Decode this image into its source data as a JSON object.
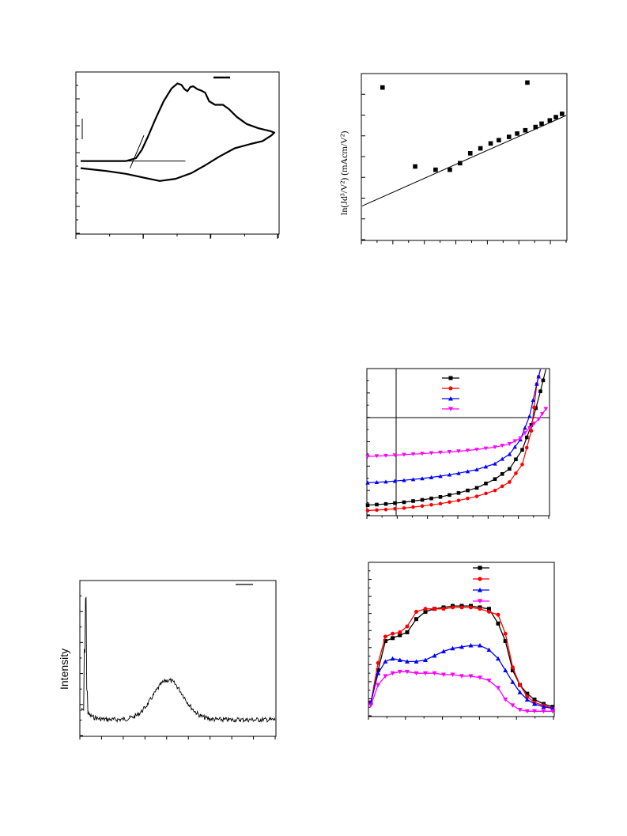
{
  "chart_data": [
    {
      "id": "cv",
      "type": "line",
      "title": "",
      "xlabel": "",
      "ylabel": "",
      "legend": {
        "placement": "top-right",
        "entries": [
          ""
        ]
      },
      "series": [
        {
          "name": "",
          "points": [
            [
              0.02,
              0.38
            ],
            [
              0.15,
              0.38
            ],
            [
              0.25,
              0.38
            ],
            [
              0.3,
              0.4
            ],
            [
              0.33,
              0.46
            ],
            [
              0.36,
              0.55
            ],
            [
              0.4,
              0.68
            ],
            [
              0.44,
              0.8
            ],
            [
              0.48,
              0.89
            ],
            [
              0.51,
              0.925
            ],
            [
              0.53,
              0.915
            ],
            [
              0.545,
              0.885
            ],
            [
              0.56,
              0.87
            ],
            [
              0.575,
              0.9
            ],
            [
              0.59,
              0.905
            ],
            [
              0.61,
              0.885
            ],
            [
              0.63,
              0.875
            ],
            [
              0.65,
              0.86
            ],
            [
              0.67,
              0.8
            ],
            [
              0.7,
              0.775
            ],
            [
              0.74,
              0.775
            ],
            [
              0.77,
              0.745
            ],
            [
              0.81,
              0.69
            ],
            [
              0.86,
              0.64
            ],
            [
              0.92,
              0.61
            ],
            [
              0.98,
              0.59
            ],
            [
              1.0,
              0.58
            ],
            [
              0.985,
              0.56
            ],
            [
              0.94,
              0.52
            ],
            [
              0.88,
              0.5
            ],
            [
              0.8,
              0.47
            ],
            [
              0.72,
              0.41
            ],
            [
              0.65,
              0.35
            ],
            [
              0.58,
              0.295
            ],
            [
              0.5,
              0.255
            ],
            [
              0.42,
              0.24
            ],
            [
              0.35,
              0.26
            ],
            [
              0.25,
              0.29
            ],
            [
              0.15,
              0.31
            ],
            [
              0.02,
              0.33
            ]
          ]
        },
        {
          "name": "",
          "points": [
            [
              0.27,
              0.33
            ],
            [
              0.34,
              0.56
            ]
          ]
        },
        {
          "name": "",
          "points": [
            [
              0.02,
              0.38
            ],
            [
              0.55,
              0.38
            ]
          ]
        }
      ]
    },
    {
      "id": "fn",
      "type": "scatter",
      "title": "",
      "xlabel": "",
      "ylabel": "ln(Jd³/V²) (mAcm/V²)",
      "series": [
        {
          "name": "",
          "points": [
            [
              0.1,
              0.92
            ],
            [
              0.26,
              0.44
            ],
            [
              0.36,
              0.42
            ],
            [
              0.43,
              0.42
            ],
            [
              0.48,
              0.46
            ],
            [
              0.53,
              0.52
            ],
            [
              0.58,
              0.55
            ],
            [
              0.63,
              0.58
            ],
            [
              0.67,
              0.6
            ],
            [
              0.72,
              0.62
            ],
            [
              0.76,
              0.64
            ],
            [
              0.8,
              0.66
            ],
            [
              0.85,
              0.68
            ],
            [
              0.88,
              0.7
            ],
            [
              0.92,
              0.72
            ],
            [
              0.95,
              0.74
            ],
            [
              0.98,
              0.76
            ],
            [
              0.81,
              0.95
            ]
          ]
        },
        {
          "name": "",
          "points": [
            [
              0.0,
              0.2
            ],
            [
              1.0,
              0.75
            ]
          ]
        }
      ]
    },
    {
      "id": "jv",
      "type": "line",
      "title": "",
      "xlabel": "",
      "ylabel": "",
      "legend": {
        "placement": "top-center",
        "entries": [
          "",
          "",
          "",
          ""
        ]
      },
      "series": [
        {
          "name": "",
          "color": "#000000",
          "marker": "square",
          "points": [
            [
              0.0,
              0.072
            ],
            [
              0.1,
              0.08
            ],
            [
              0.2,
              0.092
            ],
            [
              0.3,
              0.108
            ],
            [
              0.4,
              0.128
            ],
            [
              0.5,
              0.155
            ],
            [
              0.6,
              0.19
            ],
            [
              0.7,
              0.25
            ],
            [
              0.78,
              0.32
            ],
            [
              0.85,
              0.45
            ],
            [
              0.9,
              0.62
            ],
            [
              0.95,
              0.85
            ],
            [
              0.98,
              1.0
            ]
          ]
        },
        {
          "name": "",
          "color": "#ff0000",
          "marker": "circle",
          "points": [
            [
              0.0,
              0.035
            ],
            [
              0.1,
              0.042
            ],
            [
              0.2,
              0.052
            ],
            [
              0.3,
              0.066
            ],
            [
              0.4,
              0.082
            ],
            [
              0.5,
              0.104
            ],
            [
              0.6,
              0.132
            ],
            [
              0.7,
              0.172
            ],
            [
              0.78,
              0.23
            ],
            [
              0.85,
              0.35
            ],
            [
              0.9,
              0.58
            ],
            [
              0.93,
              0.9
            ],
            [
              0.95,
              1.0
            ]
          ]
        },
        {
          "name": "",
          "color": "#0000ff",
          "marker": "triangle-up",
          "points": [
            [
              0.0,
              0.225
            ],
            [
              0.1,
              0.232
            ],
            [
              0.2,
              0.242
            ],
            [
              0.3,
              0.254
            ],
            [
              0.4,
              0.27
            ],
            [
              0.5,
              0.29
            ],
            [
              0.6,
              0.315
            ],
            [
              0.7,
              0.355
            ],
            [
              0.78,
              0.42
            ],
            [
              0.84,
              0.52
            ],
            [
              0.89,
              0.68
            ],
            [
              0.93,
              0.9
            ],
            [
              0.95,
              1.0
            ]
          ]
        },
        {
          "name": "",
          "color": "#ff00ff",
          "marker": "triangle-down",
          "points": [
            [
              0.0,
              0.405
            ],
            [
              0.1,
              0.41
            ],
            [
              0.2,
              0.417
            ],
            [
              0.3,
              0.424
            ],
            [
              0.4,
              0.432
            ],
            [
              0.5,
              0.44
            ],
            [
              0.6,
              0.452
            ],
            [
              0.7,
              0.468
            ],
            [
              0.78,
              0.49
            ],
            [
              0.84,
              0.53
            ],
            [
              0.89,
              0.6
            ],
            [
              0.94,
              0.66
            ],
            [
              0.98,
              0.73
            ]
          ]
        }
      ]
    },
    {
      "id": "eqe",
      "type": "line",
      "title": "",
      "xlabel": "",
      "ylabel": "",
      "legend": {
        "placement": "top-right",
        "entries": [
          "",
          "",
          "",
          ""
        ]
      },
      "series": [
        {
          "name": "",
          "color": "#000000",
          "marker": "square",
          "points": [
            [
              0.0,
              0.08
            ],
            [
              0.04,
              0.3
            ],
            [
              0.08,
              0.5
            ],
            [
              0.12,
              0.52
            ],
            [
              0.16,
              0.54
            ],
            [
              0.2,
              0.56
            ],
            [
              0.25,
              0.65
            ],
            [
              0.3,
              0.7
            ],
            [
              0.35,
              0.72
            ],
            [
              0.4,
              0.73
            ],
            [
              0.45,
              0.74
            ],
            [
              0.5,
              0.74
            ],
            [
              0.55,
              0.74
            ],
            [
              0.6,
              0.73
            ],
            [
              0.65,
              0.72
            ],
            [
              0.7,
              0.62
            ],
            [
              0.74,
              0.5
            ],
            [
              0.78,
              0.3
            ],
            [
              0.82,
              0.2
            ],
            [
              0.86,
              0.14
            ],
            [
              0.9,
              0.1
            ],
            [
              0.95,
              0.07
            ],
            [
              1.0,
              0.05
            ]
          ]
        },
        {
          "name": "",
          "color": "#ff0000",
          "marker": "circle",
          "points": [
            [
              0.0,
              0.08
            ],
            [
              0.04,
              0.35
            ],
            [
              0.08,
              0.53
            ],
            [
              0.12,
              0.55
            ],
            [
              0.16,
              0.56
            ],
            [
              0.2,
              0.6
            ],
            [
              0.25,
              0.7
            ],
            [
              0.3,
              0.72
            ],
            [
              0.35,
              0.72
            ],
            [
              0.4,
              0.72
            ],
            [
              0.45,
              0.73
            ],
            [
              0.5,
              0.73
            ],
            [
              0.55,
              0.73
            ],
            [
              0.6,
              0.72
            ],
            [
              0.65,
              0.7
            ],
            [
              0.7,
              0.68
            ],
            [
              0.74,
              0.55
            ],
            [
              0.78,
              0.32
            ],
            [
              0.82,
              0.2
            ],
            [
              0.86,
              0.12
            ],
            [
              0.9,
              0.08
            ],
            [
              0.95,
              0.06
            ],
            [
              1.0,
              0.04
            ]
          ]
        },
        {
          "name": "",
          "color": "#0000ff",
          "marker": "triangle-up",
          "points": [
            [
              0.0,
              0.08
            ],
            [
              0.04,
              0.28
            ],
            [
              0.08,
              0.36
            ],
            [
              0.12,
              0.38
            ],
            [
              0.16,
              0.37
            ],
            [
              0.2,
              0.36
            ],
            [
              0.25,
              0.36
            ],
            [
              0.3,
              0.37
            ],
            [
              0.35,
              0.4
            ],
            [
              0.4,
              0.43
            ],
            [
              0.45,
              0.45
            ],
            [
              0.5,
              0.46
            ],
            [
              0.55,
              0.47
            ],
            [
              0.6,
              0.47
            ],
            [
              0.65,
              0.44
            ],
            [
              0.7,
              0.38
            ],
            [
              0.74,
              0.3
            ],
            [
              0.78,
              0.22
            ],
            [
              0.82,
              0.15
            ],
            [
              0.86,
              0.1
            ],
            [
              0.9,
              0.07
            ],
            [
              0.95,
              0.05
            ],
            [
              1.0,
              0.04
            ]
          ]
        },
        {
          "name": "",
          "color": "#ff00ff",
          "marker": "triangle-down",
          "points": [
            [
              0.0,
              0.06
            ],
            [
              0.04,
              0.2
            ],
            [
              0.08,
              0.26
            ],
            [
              0.12,
              0.28
            ],
            [
              0.16,
              0.29
            ],
            [
              0.2,
              0.29
            ],
            [
              0.25,
              0.28
            ],
            [
              0.3,
              0.28
            ],
            [
              0.35,
              0.28
            ],
            [
              0.4,
              0.27
            ],
            [
              0.45,
              0.27
            ],
            [
              0.5,
              0.26
            ],
            [
              0.55,
              0.26
            ],
            [
              0.6,
              0.25
            ],
            [
              0.65,
              0.23
            ],
            [
              0.7,
              0.18
            ],
            [
              0.74,
              0.1
            ],
            [
              0.78,
              0.06
            ],
            [
              0.82,
              0.03
            ],
            [
              0.86,
              0.02
            ],
            [
              0.9,
              0.02
            ],
            [
              0.95,
              0.02
            ],
            [
              1.0,
              0.02
            ]
          ]
        }
      ]
    },
    {
      "id": "xrd",
      "type": "line",
      "title": "",
      "xlabel": "",
      "ylabel": "Intensity",
      "legend": {
        "placement": "top-right",
        "entries": [
          ""
        ]
      },
      "series": [
        {
          "name": "",
          "points": []
        }
      ]
    }
  ]
}
